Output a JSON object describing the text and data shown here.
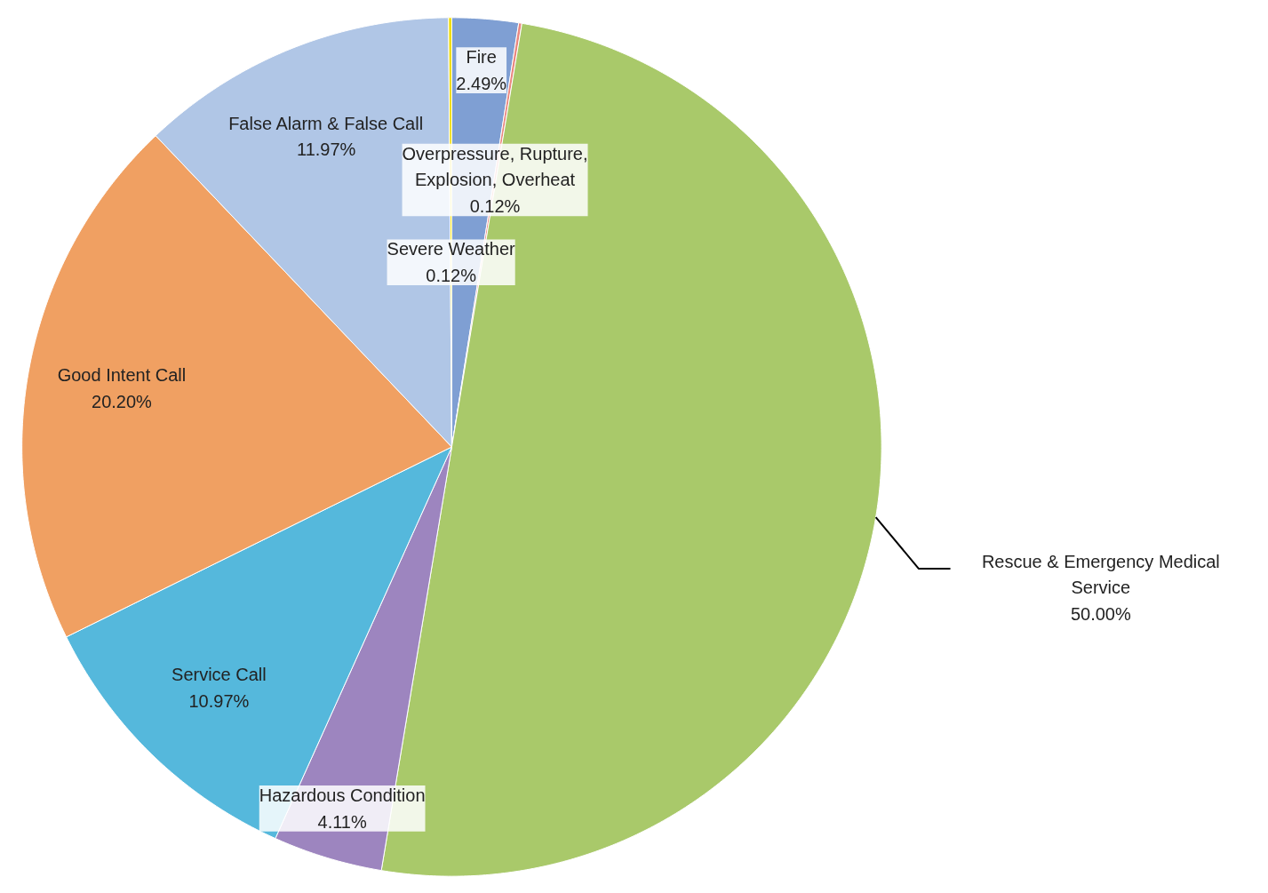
{
  "chart_data": {
    "type": "pie",
    "categories": [
      "Fire",
      "Overpressure, Rupture, Explosion, Overheat",
      "Rescue & Emergency Medical Service",
      "Hazardous Condition",
      "Service Call",
      "Good Intent Call",
      "False Alarm & False Call",
      "Severe Weather"
    ],
    "values": [
      2.49,
      0.12,
      50.0,
      4.11,
      10.97,
      20.2,
      11.97,
      0.12
    ],
    "value_labels": [
      "2.49%",
      "0.12%",
      "50.00%",
      "4.11%",
      "10.97%",
      "20.20%",
      "11.97%",
      "0.12%"
    ],
    "colors": [
      "#7f9fd3",
      "#e9877f",
      "#a9c96a",
      "#9d85bf",
      "#55b8dc",
      "#f0a062",
      "#b0c6e6",
      "#f0dc00"
    ]
  }
}
